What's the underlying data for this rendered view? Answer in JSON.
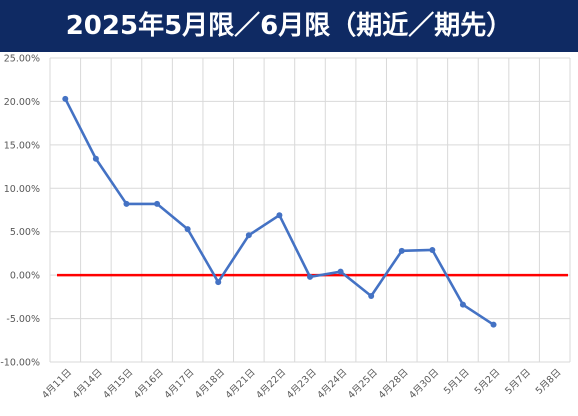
{
  "header": {
    "title": "2025年5月限／6月限（期近／期先）"
  },
  "chart_data": {
    "type": "line",
    "title": "2025年5月限／6月限（期近／期先）",
    "xlabel": "",
    "ylabel": "",
    "categories": [
      "4月11日",
      "4月14日",
      "4月15日",
      "4月16日",
      "4月17日",
      "4月18日",
      "4月21日",
      "4月22日",
      "4月23日",
      "4月24日",
      "4月25日",
      "4月28日",
      "4月30日",
      "5月1日",
      "5月2日",
      "5月7日",
      "5月8日"
    ],
    "y_ticks": [
      "25.00%",
      "20.00%",
      "15.00%",
      "10.00%",
      "5.00%",
      "0.00%",
      "-5.00%",
      "-10.00%"
    ],
    "ylim": [
      -10,
      25
    ],
    "grid": true,
    "legend": "none",
    "series": [
      {
        "values": [
          20.3,
          13.4,
          8.2,
          8.2,
          5.3,
          -0.8,
          4.6,
          6.9,
          -0.2,
          0.4,
          -2.4,
          2.8,
          2.9,
          -3.4,
          -5.7,
          null,
          null
        ],
        "color": "#4472c4"
      }
    ],
    "reference_line": {
      "value": 0,
      "color": "#ff0000"
    }
  }
}
